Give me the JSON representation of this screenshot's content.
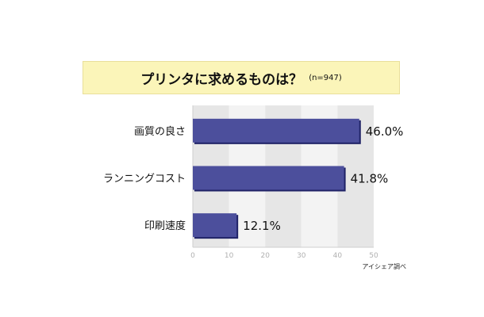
{
  "title": {
    "main": "プリンタに求めるものは？",
    "sample": "(n=947)"
  },
  "source": "アイシェア調べ",
  "chart_data": {
    "type": "bar",
    "orientation": "horizontal",
    "categories": [
      "画質の良さ",
      "ランニングコスト",
      "印刷速度"
    ],
    "values": [
      46.0,
      41.8,
      12.1
    ],
    "value_labels": [
      "46.0%",
      "41.8%",
      "12.1%"
    ],
    "xlim": [
      0,
      50
    ],
    "xticks": [
      "0",
      "10",
      "20",
      "30",
      "40",
      "50"
    ],
    "grid": "alternating bands",
    "colors": {
      "bar": "#4c4f9c",
      "bar_shadow": "#1f2266",
      "band_dark": "#e6e6e6",
      "band_light": "#f3f3f3",
      "axis": "#cfcfcf"
    }
  }
}
